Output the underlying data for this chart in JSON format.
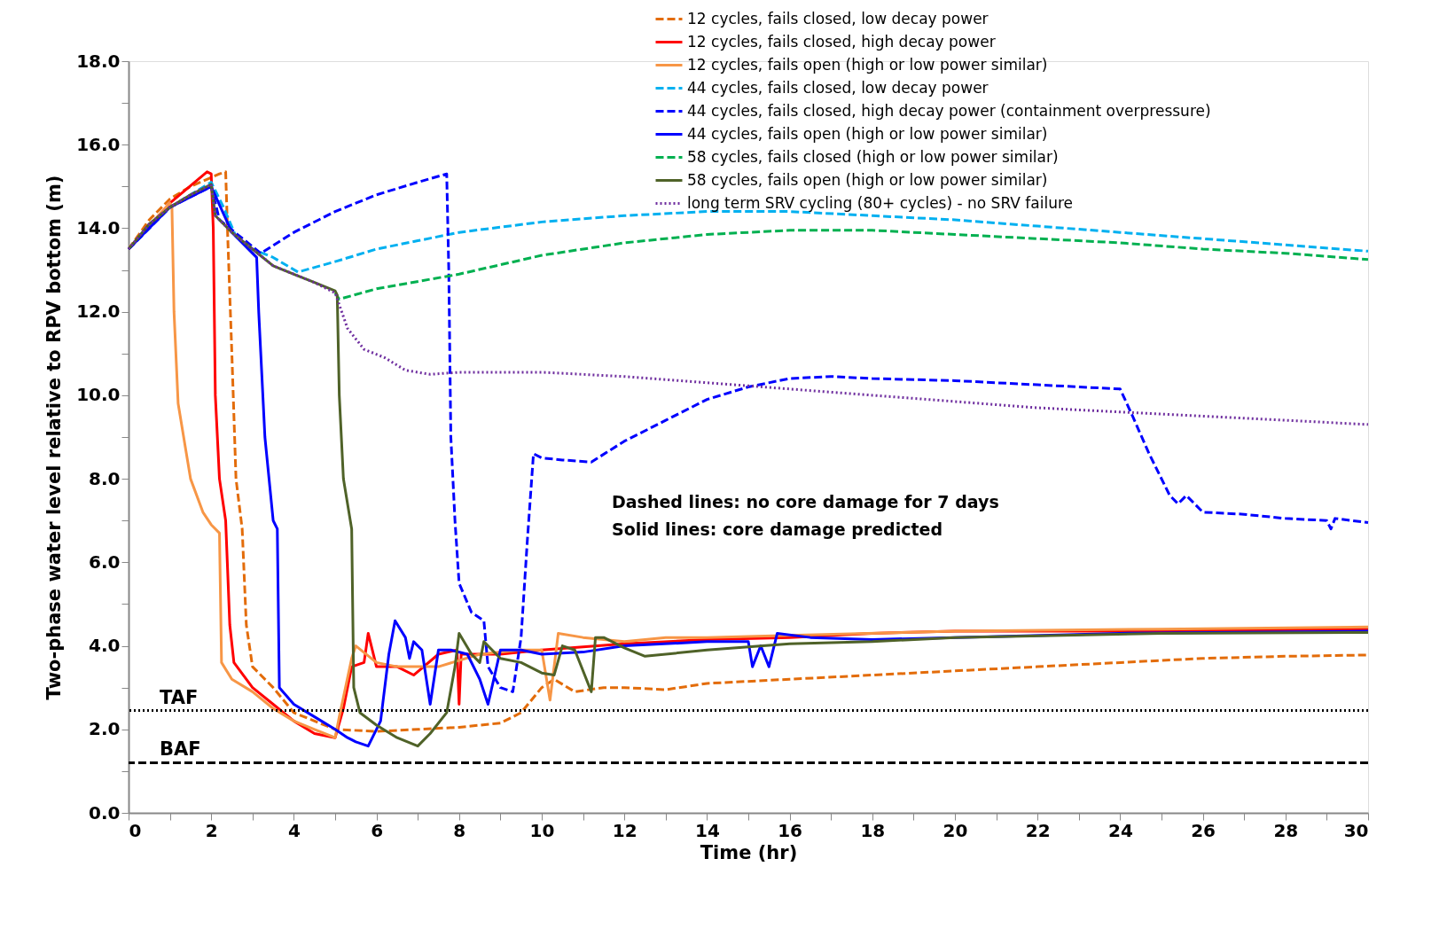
{
  "chart_data": {
    "type": "line",
    "xlabel": "Time (hr)",
    "ylabel": "Two-phase water level relative to RPV bottom (m)",
    "xlim": [
      0,
      30
    ],
    "ylim": [
      0,
      18
    ],
    "xticks": [
      0,
      {
        "value": 1,
        "label": null
      },
      2,
      {
        "value": 3,
        "label": null
      },
      4,
      {
        "value": 5,
        "label": null
      },
      6,
      {
        "value": 7,
        "label": null
      },
      8,
      {
        "value": 9,
        "label": null
      },
      10,
      {
        "value": 11,
        "label": null
      },
      12,
      {
        "value": 13,
        "label": null
      },
      14,
      {
        "value": 15,
        "label": null
      },
      16,
      {
        "value": 17,
        "label": null
      },
      18,
      {
        "value": 19,
        "label": null
      },
      20,
      {
        "value": 21,
        "label": null
      },
      22,
      {
        "value": 23,
        "label": null
      },
      24,
      {
        "value": 25,
        "label": null
      },
      26,
      {
        "value": 27,
        "label": null
      },
      28,
      {
        "value": 29,
        "label": null
      },
      30
    ],
    "yticks": [
      {
        "value": 0,
        "label": "0.0"
      },
      {
        "value": 1,
        "label": null
      },
      {
        "value": 2,
        "label": "2.0"
      },
      {
        "value": 3,
        "label": null
      },
      {
        "value": 4,
        "label": "4.0"
      },
      {
        "value": 5,
        "label": null
      },
      {
        "value": 6,
        "label": "6.0"
      },
      {
        "value": 7,
        "label": null
      },
      {
        "value": 8,
        "label": "8.0"
      },
      {
        "value": 9,
        "label": null
      },
      {
        "value": 10,
        "label": "10.0"
      },
      {
        "value": 11,
        "label": null
      },
      {
        "value": 12,
        "label": "12.0"
      },
      {
        "value": 13,
        "label": null
      },
      {
        "value": 14,
        "label": "14.0"
      },
      {
        "value": 15,
        "label": null
      },
      {
        "value": 16,
        "label": "16.0"
      },
      {
        "value": 17,
        "label": null
      },
      {
        "value": 18,
        "label": "18.0"
      }
    ],
    "grid": false,
    "legend": "top right",
    "series": [
      {
        "name": "12 cycles, fails closed, low decay power",
        "color": "#e36c0a",
        "line_style": "dashed",
        "x": [
          0,
          0.5,
          1,
          1.5,
          2.2,
          2.35,
          2.4,
          2.5,
          2.6,
          2.75,
          2.85,
          3.0,
          3.5,
          4.0,
          4.5,
          5.0,
          6,
          7,
          8,
          9,
          9.5,
          10,
          10.3,
          10.8,
          11.5,
          12,
          13,
          14,
          16,
          18,
          20,
          22,
          24,
          26,
          28,
          30
        ],
        "values": [
          13.5,
          14.2,
          14.7,
          15.0,
          15.3,
          15.35,
          13.8,
          11,
          8,
          6.8,
          4.5,
          3.5,
          3.0,
          2.4,
          2.2,
          2.0,
          1.95,
          2.0,
          2.05,
          2.15,
          2.4,
          3.0,
          3.2,
          2.9,
          3.0,
          3.0,
          2.95,
          3.1,
          3.2,
          3.3,
          3.4,
          3.5,
          3.6,
          3.7,
          3.75,
          3.78
        ]
      },
      {
        "name": "12 cycles, fails closed, high decay power",
        "color": "#ff0000",
        "line_style": "solid",
        "x": [
          0,
          1,
          1.9,
          2.0,
          2.05,
          2.1,
          2.2,
          2.35,
          2.45,
          2.55,
          3,
          3.5,
          4,
          4.5,
          5,
          5.2,
          5.4,
          5.7,
          5.8,
          6,
          6.5,
          6.9,
          7.5,
          7.95,
          8.0,
          8.05,
          9,
          10,
          12,
          14,
          16,
          18,
          20,
          24,
          30
        ],
        "values": [
          13.5,
          14.6,
          15.35,
          15.3,
          14,
          10,
          8,
          7,
          4.5,
          3.6,
          3.0,
          2.6,
          2.2,
          1.9,
          1.8,
          2.5,
          3.5,
          3.6,
          4.3,
          3.5,
          3.5,
          3.3,
          3.8,
          3.9,
          2.6,
          3.8,
          3.8,
          3.9,
          4.05,
          4.15,
          4.2,
          4.3,
          4.35,
          4.35,
          4.4
        ]
      },
      {
        "name": "12 cycles, fails open (high or low power similar)",
        "color": "#f79646",
        "line_style": "solid",
        "x": [
          0,
          1,
          1.05,
          1.1,
          1.2,
          1.5,
          1.8,
          2.0,
          2.2,
          2.25,
          2.5,
          3,
          3.5,
          4,
          4.5,
          5,
          5.1,
          5.4,
          5.5,
          6,
          6.5,
          7.5,
          8.5,
          9.5,
          10,
          10.2,
          10.4,
          11,
          12,
          13,
          14,
          16,
          20,
          25,
          30
        ],
        "values": [
          13.5,
          14.6,
          14.5,
          12,
          9.8,
          8,
          7.2,
          6.9,
          6.7,
          3.6,
          3.2,
          2.9,
          2.5,
          2.2,
          2.0,
          1.8,
          2.3,
          3.7,
          4.0,
          3.6,
          3.5,
          3.5,
          3.8,
          3.9,
          3.9,
          2.7,
          4.3,
          4.2,
          4.1,
          4.2,
          4.2,
          4.25,
          4.35,
          4.4,
          4.45
        ]
      },
      {
        "name": "44 cycles, fails closed, low decay power",
        "color": "#00b0f0",
        "line_style": "dashed",
        "x": [
          0,
          1,
          2,
          2.3,
          2.6,
          3,
          3.5,
          4.1,
          5,
          6,
          7,
          8,
          10,
          12,
          14,
          16,
          18,
          20,
          22,
          24,
          26,
          28,
          30
        ],
        "values": [
          13.5,
          14.5,
          15.1,
          14.5,
          13.8,
          13.5,
          13.3,
          12.95,
          13.2,
          13.5,
          13.7,
          13.9,
          14.15,
          14.3,
          14.4,
          14.4,
          14.3,
          14.2,
          14.05,
          13.9,
          13.75,
          13.6,
          13.45
        ]
      },
      {
        "name": "44 cycles, fails closed, high decay power (containment overpressure)",
        "color": "#0000ff",
        "line_style": "dashed",
        "x": [
          0,
          1,
          2,
          2.2,
          3.2,
          4,
          5,
          6,
          7,
          7.7,
          7.75,
          7.8,
          7.9,
          8,
          8.3,
          8.6,
          8.7,
          9,
          9.3,
          9.5,
          9.65,
          9.8,
          10,
          10.5,
          11.2,
          12,
          13,
          14,
          15,
          16,
          17,
          18,
          20,
          22,
          24,
          24.3,
          24.7,
          25.2,
          25.4,
          25.6,
          26,
          27,
          28,
          29,
          29.1,
          29.2,
          30
        ],
        "values": [
          13.5,
          14.5,
          15.0,
          14.2,
          13.4,
          13.9,
          14.4,
          14.8,
          15.1,
          15.3,
          13,
          9,
          7,
          5.5,
          4.8,
          4.6,
          3.5,
          3.0,
          2.9,
          4.2,
          6.5,
          8.6,
          8.5,
          8.45,
          8.4,
          8.9,
          9.4,
          9.9,
          10.2,
          10.4,
          10.45,
          10.4,
          10.35,
          10.25,
          10.15,
          9.5,
          8.6,
          7.6,
          7.4,
          7.6,
          7.2,
          7.15,
          7.05,
          7.0,
          6.8,
          7.05,
          6.95
        ]
      },
      {
        "name": "44 cycles, fails open (high or low power similar)",
        "color": "#0000ff",
        "line_style": "solid",
        "x": [
          0,
          1,
          2,
          2.5,
          3.1,
          3.15,
          3.3,
          3.5,
          3.6,
          3.65,
          4,
          4.5,
          5,
          5.3,
          5.5,
          5.8,
          6.1,
          6.3,
          6.45,
          6.7,
          6.8,
          6.9,
          7.1,
          7.3,
          7.5,
          7.8,
          8.2,
          8.5,
          8.7,
          9,
          9.5,
          10,
          11,
          12,
          14,
          15,
          15.1,
          15.3,
          15.5,
          15.7,
          16.5,
          18,
          20,
          24,
          30
        ],
        "values": [
          13.5,
          14.5,
          15.0,
          13.9,
          13.3,
          12,
          9,
          7,
          6.8,
          3.0,
          2.6,
          2.3,
          2.0,
          1.8,
          1.7,
          1.6,
          2.2,
          3.8,
          4.6,
          4.2,
          3.7,
          4.1,
          3.9,
          2.6,
          3.9,
          3.9,
          3.8,
          3.2,
          2.6,
          3.9,
          3.9,
          3.8,
          3.85,
          4.0,
          4.1,
          4.1,
          3.5,
          4.0,
          3.5,
          4.3,
          4.2,
          4.15,
          4.2,
          4.3,
          4.35
        ]
      },
      {
        "name": "58 cycles, fails closed (high or low power similar)",
        "color": "#00b050",
        "line_style": "dashed",
        "x": [
          5,
          5.1,
          6,
          8,
          10,
          12,
          14,
          16,
          18,
          20,
          22,
          24,
          26,
          28,
          30
        ],
        "values": [
          12.45,
          12.3,
          12.55,
          12.9,
          13.35,
          13.65,
          13.85,
          13.95,
          13.95,
          13.85,
          13.75,
          13.65,
          13.5,
          13.4,
          13.25
        ]
      },
      {
        "name": "58 cycles, fails open (high or low power similar)",
        "color": "#4f6228",
        "line_style": "solid",
        "x": [
          0,
          0.5,
          1,
          1.5,
          2,
          2.1,
          2.5,
          3,
          3.5,
          4,
          4.5,
          5,
          5.05,
          5.1,
          5.2,
          5.4,
          5.45,
          5.6,
          6,
          6.5,
          7,
          7.3,
          7.7,
          7.9,
          8.0,
          8.3,
          8.5,
          8.6,
          9,
          9.5,
          10,
          10.3,
          10.5,
          10.8,
          11.2,
          11.3,
          11.5,
          12,
          12.5,
          14,
          16,
          18,
          20,
          25,
          30
        ],
        "values": [
          13.5,
          14.1,
          14.5,
          14.8,
          15.05,
          14.3,
          13.9,
          13.5,
          13.1,
          12.9,
          12.7,
          12.5,
          12.4,
          10,
          8,
          6.8,
          3,
          2.4,
          2.1,
          1.8,
          1.6,
          1.9,
          2.4,
          3.5,
          4.3,
          3.8,
          3.6,
          4.1,
          3.7,
          3.6,
          3.35,
          3.3,
          4.0,
          3.9,
          2.9,
          4.2,
          4.2,
          3.95,
          3.75,
          3.9,
          4.05,
          4.1,
          4.2,
          4.3,
          4.32
        ]
      },
      {
        "name": "long term SRV cycling (80+ cycles) - no SRV failure",
        "color": "#7030a0",
        "line_style": "dotted",
        "x": [
          0,
          0.5,
          1,
          1.5,
          2,
          2.1,
          2.5,
          3,
          3.5,
          4,
          4.5,
          5,
          5.3,
          5.7,
          6.2,
          6.7,
          7.3,
          8,
          10,
          12,
          14,
          16,
          18,
          20,
          22,
          24,
          26,
          28,
          30
        ],
        "values": [
          13.5,
          14.1,
          14.5,
          14.8,
          15.05,
          14.3,
          13.9,
          13.5,
          13.1,
          12.9,
          12.7,
          12.45,
          11.6,
          11.1,
          10.9,
          10.6,
          10.5,
          10.55,
          10.55,
          10.45,
          10.3,
          10.15,
          10.0,
          9.85,
          9.7,
          9.6,
          9.5,
          9.4,
          9.3
        ]
      }
    ],
    "ref_lines": [
      {
        "axis": "y",
        "value": 2.45,
        "label": "TAF",
        "color": "#000000",
        "line_style": "dotted"
      },
      {
        "axis": "y",
        "value": 1.2,
        "label": "BAF",
        "color": "#000000",
        "line_style": "dashed"
      }
    ],
    "annotations": [
      "Dashed lines: no core damage for 7 days",
      "Solid lines: core damage predicted"
    ]
  }
}
